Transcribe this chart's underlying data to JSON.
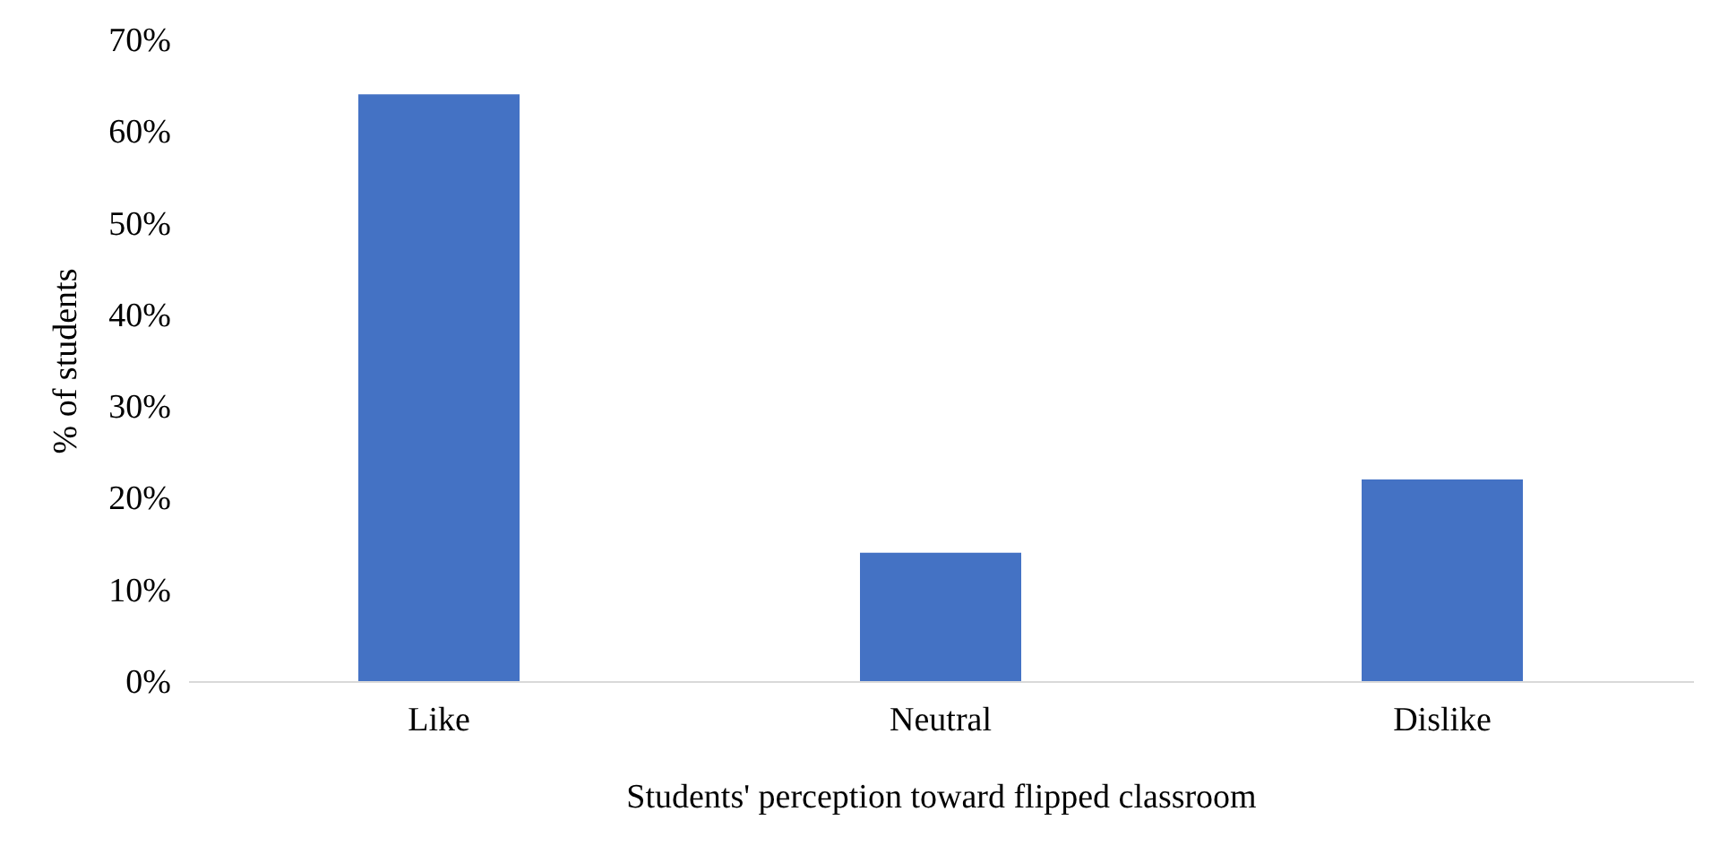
{
  "chart_data": {
    "type": "bar",
    "xlabel": "Students' perception toward flipped classroom",
    "ylabel": "% of students",
    "categories": [
      "Like",
      "Neutral",
      "Dislike"
    ],
    "values": [
      64,
      14,
      22
    ],
    "color": "#4472c4",
    "ylim": [
      0,
      70
    ],
    "yticks": [
      {
        "value": 0,
        "label": "0%"
      },
      {
        "value": 10,
        "label": "10%"
      },
      {
        "value": 20,
        "label": "20%"
      },
      {
        "value": 30,
        "label": "30%"
      },
      {
        "value": 40,
        "label": "40%"
      },
      {
        "value": 50,
        "label": "50%"
      },
      {
        "value": 60,
        "label": "60%"
      },
      {
        "value": 70,
        "label": "70%"
      }
    ],
    "grid": false
  }
}
